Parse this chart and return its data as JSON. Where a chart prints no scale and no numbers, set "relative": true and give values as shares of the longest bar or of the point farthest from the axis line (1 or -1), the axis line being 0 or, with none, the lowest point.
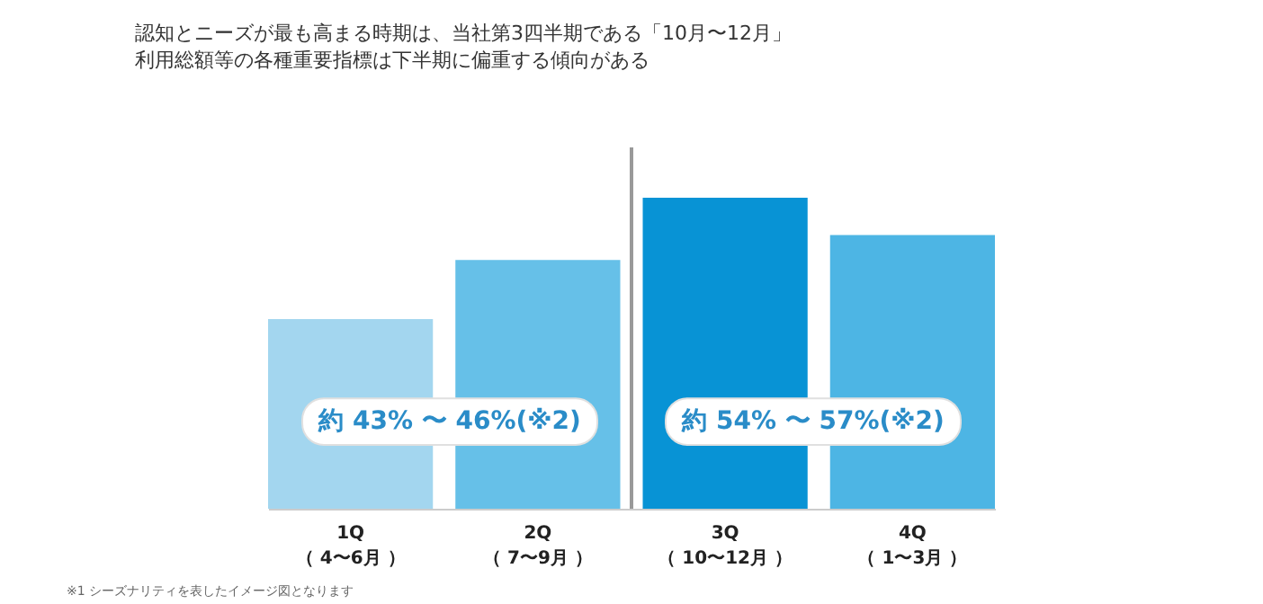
{
  "chart_data": {
    "type": "bar",
    "relative": true,
    "title": "認知とニーズが最も高まる時期は、当社第3四半期である「10月〜12月」",
    "subtitle": "利用総額等の各種重要指標は下半期に偏重する傾向がある",
    "categories": [
      "1Q\n（ 4〜6月 ）",
      "2Q\n（ 7〜9月 ）",
      "3Q\n（ 10〜12月 ）",
      "4Q\n（ 1〜3月 ）"
    ],
    "values": [
      0.61,
      0.8,
      1,
      0.88
    ],
    "colors": [
      "#a3d6ef",
      "#66c0e8",
      "#0893d5",
      "#4db5e4"
    ],
    "annotations": [
      {
        "text": "約 43% 〜 46%(※2)",
        "y": 0.28
      },
      {
        "text": "約 54% 〜 57%(※2)",
        "y": 0.28
      },
      "※1 シーズナリティを表したイメージ図となります"
    ]
  }
}
